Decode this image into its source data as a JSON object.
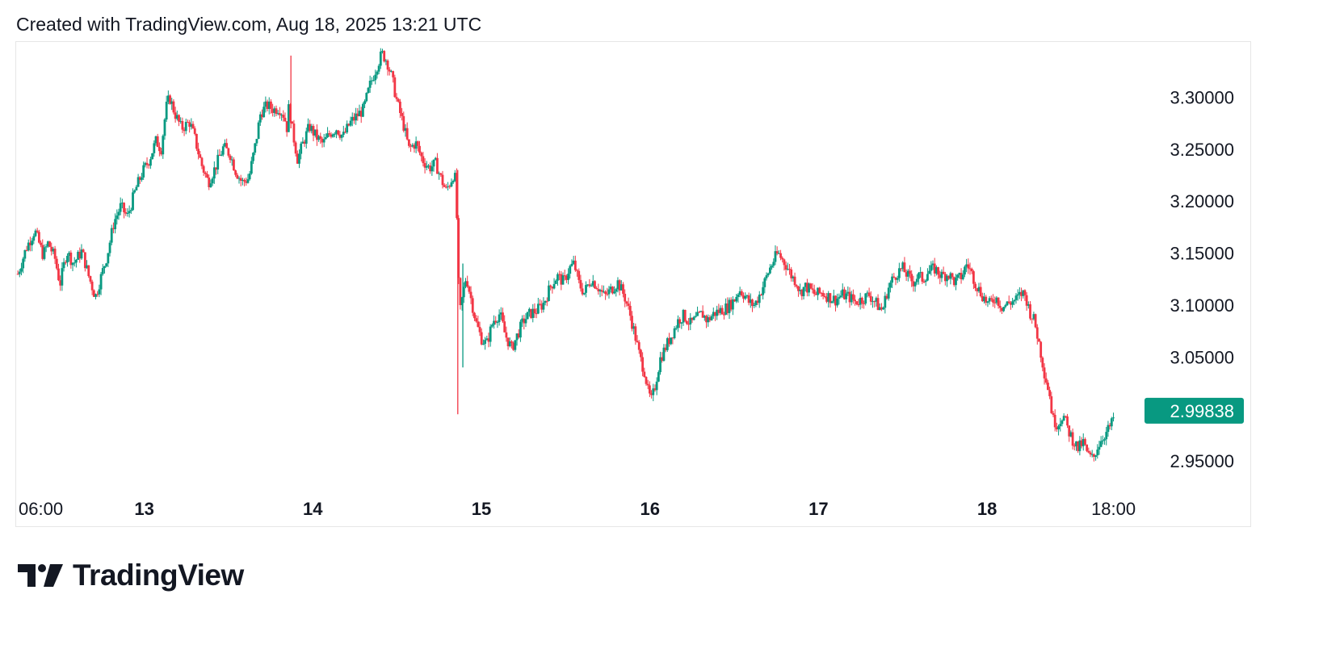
{
  "header": {
    "text": "Created with TradingView.com, Aug 18, 2025 13:21 UTC"
  },
  "footer": {
    "brand": "TradingView"
  },
  "colors": {
    "up": "#089981",
    "down": "#f23645",
    "text": "#131722",
    "border": "#e6e6e6",
    "last_price_bg": "#089981"
  },
  "chart_data": {
    "type": "candlestick",
    "y_ticks": [
      "3.30000",
      "3.25000",
      "3.20000",
      "3.15000",
      "3.10000",
      "3.05000",
      "2.95000"
    ],
    "ylim": [
      2.93,
      3.35
    ],
    "x_ticks": [
      {
        "label": "06:00",
        "t": 0.0,
        "bold": false
      },
      {
        "label": "13",
        "t": 0.75,
        "bold": true
      },
      {
        "label": "14",
        "t": 1.75,
        "bold": true
      },
      {
        "label": "15",
        "t": 2.75,
        "bold": true
      },
      {
        "label": "16",
        "t": 3.75,
        "bold": true
      },
      {
        "label": "17",
        "t": 4.75,
        "bold": true
      },
      {
        "label": "18",
        "t": 5.75,
        "bold": true
      },
      {
        "label": "18:00",
        "t": 6.5,
        "bold": false
      }
    ],
    "xlim": [
      -0.01,
      6.66
    ],
    "last_price": {
      "value": 2.99838,
      "label": "2.99838"
    },
    "path": [
      [
        0.0,
        3.13
      ],
      [
        0.05,
        3.155
      ],
      [
        0.1,
        3.172
      ],
      [
        0.15,
        3.148
      ],
      [
        0.18,
        3.16
      ],
      [
        0.22,
        3.145
      ],
      [
        0.25,
        3.12
      ],
      [
        0.29,
        3.152
      ],
      [
        0.33,
        3.14
      ],
      [
        0.38,
        3.152
      ],
      [
        0.42,
        3.128
      ],
      [
        0.46,
        3.108
      ],
      [
        0.49,
        3.125
      ],
      [
        0.53,
        3.148
      ],
      [
        0.57,
        3.18
      ],
      [
        0.61,
        3.195
      ],
      [
        0.65,
        3.185
      ],
      [
        0.7,
        3.212
      ],
      [
        0.74,
        3.228
      ],
      [
        0.78,
        3.24
      ],
      [
        0.82,
        3.258
      ],
      [
        0.85,
        3.25
      ],
      [
        0.88,
        3.29
      ],
      [
        0.9,
        3.3
      ],
      [
        0.93,
        3.285
      ],
      [
        0.97,
        3.27
      ],
      [
        1.02,
        3.276
      ],
      [
        1.05,
        3.26
      ],
      [
        1.09,
        3.235
      ],
      [
        1.13,
        3.218
      ],
      [
        1.17,
        3.232
      ],
      [
        1.22,
        3.252
      ],
      [
        1.26,
        3.245
      ],
      [
        1.29,
        3.23
      ],
      [
        1.33,
        3.218
      ],
      [
        1.37,
        3.222
      ],
      [
        1.41,
        3.255
      ],
      [
        1.44,
        3.285
      ],
      [
        1.48,
        3.292
      ],
      [
        1.52,
        3.288
      ],
      [
        1.55,
        3.29
      ],
      [
        1.58,
        3.282
      ],
      [
        1.6,
        3.268
      ],
      [
        1.61,
        3.3
      ],
      [
        1.62,
        3.275
      ],
      [
        1.64,
        3.258
      ],
      [
        1.66,
        3.24
      ],
      [
        1.69,
        3.255
      ],
      [
        1.73,
        3.272
      ],
      [
        1.77,
        3.262
      ],
      [
        1.81,
        3.255
      ],
      [
        1.85,
        3.265
      ],
      [
        1.89,
        3.27
      ],
      [
        1.93,
        3.262
      ],
      [
        1.97,
        3.275
      ],
      [
        2.01,
        3.282
      ],
      [
        2.05,
        3.288
      ],
      [
        2.09,
        3.312
      ],
      [
        2.13,
        3.33
      ],
      [
        2.16,
        3.342
      ],
      [
        2.19,
        3.335
      ],
      [
        2.22,
        3.318
      ],
      [
        2.25,
        3.295
      ],
      [
        2.29,
        3.272
      ],
      [
        2.32,
        3.25
      ],
      [
        2.36,
        3.256
      ],
      [
        2.4,
        3.24
      ],
      [
        2.44,
        3.232
      ],
      [
        2.48,
        3.236
      ],
      [
        2.51,
        3.222
      ],
      [
        2.54,
        3.21
      ],
      [
        2.57,
        3.22
      ],
      [
        2.59,
        3.228
      ],
      [
        2.6,
        3.21
      ],
      [
        2.61,
        3.145
      ],
      [
        2.62,
        3.09
      ],
      [
        2.64,
        3.11
      ],
      [
        2.66,
        3.128
      ],
      [
        2.69,
        3.105
      ],
      [
        2.72,
        3.082
      ],
      [
        2.75,
        3.068
      ],
      [
        2.78,
        3.062
      ],
      [
        2.82,
        3.085
      ],
      [
        2.86,
        3.092
      ],
      [
        2.89,
        3.072
      ],
      [
        2.93,
        3.058
      ],
      [
        2.96,
        3.07
      ],
      [
        3.0,
        3.085
      ],
      [
        3.04,
        3.092
      ],
      [
        3.08,
        3.095
      ],
      [
        3.12,
        3.102
      ],
      [
        3.16,
        3.118
      ],
      [
        3.2,
        3.128
      ],
      [
        3.24,
        3.122
      ],
      [
        3.27,
        3.135
      ],
      [
        3.3,
        3.14
      ],
      [
        3.33,
        3.12
      ],
      [
        3.36,
        3.112
      ],
      [
        3.4,
        3.125
      ],
      [
        3.44,
        3.118
      ],
      [
        3.48,
        3.108
      ],
      [
        3.52,
        3.115
      ],
      [
        3.56,
        3.122
      ],
      [
        3.6,
        3.108
      ],
      [
        3.63,
        3.092
      ],
      [
        3.66,
        3.072
      ],
      [
        3.69,
        3.05
      ],
      [
        3.72,
        3.035
      ],
      [
        3.74,
        3.015
      ],
      [
        3.76,
        3.008
      ],
      [
        3.78,
        3.022
      ],
      [
        3.81,
        3.048
      ],
      [
        3.85,
        3.062
      ],
      [
        3.88,
        3.072
      ],
      [
        3.92,
        3.086
      ],
      [
        3.95,
        3.09
      ],
      [
        3.99,
        3.082
      ],
      [
        4.02,
        3.086
      ],
      [
        4.06,
        3.092
      ],
      [
        4.09,
        3.085
      ],
      [
        4.13,
        3.092
      ],
      [
        4.17,
        3.095
      ],
      [
        4.21,
        3.098
      ],
      [
        4.25,
        3.105
      ],
      [
        4.28,
        3.115
      ],
      [
        4.31,
        3.11
      ],
      [
        4.34,
        3.102
      ],
      [
        4.37,
        3.1
      ],
      [
        4.4,
        3.11
      ],
      [
        4.43,
        3.122
      ],
      [
        4.46,
        3.135
      ],
      [
        4.49,
        3.145
      ],
      [
        4.51,
        3.15
      ],
      [
        4.53,
        3.145
      ],
      [
        4.56,
        3.138
      ],
      [
        4.59,
        3.128
      ],
      [
        4.62,
        3.122
      ],
      [
        4.64,
        3.112
      ],
      [
        4.67,
        3.118
      ],
      [
        4.7,
        3.115
      ],
      [
        4.73,
        3.11
      ],
      [
        4.77,
        3.112
      ],
      [
        4.81,
        3.108
      ],
      [
        4.85,
        3.105
      ],
      [
        4.89,
        3.11
      ],
      [
        4.93,
        3.108
      ],
      [
        4.97,
        3.103
      ],
      [
        5.01,
        3.106
      ],
      [
        5.05,
        3.11
      ],
      [
        5.09,
        3.102
      ],
      [
        5.11,
        3.098
      ],
      [
        5.13,
        3.095
      ],
      [
        5.16,
        3.115
      ],
      [
        5.19,
        3.125
      ],
      [
        5.22,
        3.132
      ],
      [
        5.25,
        3.135
      ],
      [
        5.28,
        3.128
      ],
      [
        5.31,
        3.122
      ],
      [
        5.34,
        3.128
      ],
      [
        5.37,
        3.125
      ],
      [
        5.4,
        3.132
      ],
      [
        5.44,
        3.135
      ],
      [
        5.48,
        3.128
      ],
      [
        5.52,
        3.13
      ],
      [
        5.56,
        3.122
      ],
      [
        5.6,
        3.128
      ],
      [
        5.63,
        3.14
      ],
      [
        5.66,
        3.13
      ],
      [
        5.69,
        3.118
      ],
      [
        5.72,
        3.11
      ],
      [
        5.76,
        3.1
      ],
      [
        5.8,
        3.108
      ],
      [
        5.84,
        3.098
      ],
      [
        5.88,
        3.102
      ],
      [
        5.92,
        3.105
      ],
      [
        5.96,
        3.112
      ],
      [
        5.98,
        3.108
      ],
      [
        6.0,
        3.095
      ],
      [
        6.03,
        3.085
      ],
      [
        6.06,
        3.062
      ],
      [
        6.09,
        3.035
      ],
      [
        6.12,
        3.015
      ],
      [
        6.14,
        2.99
      ],
      [
        6.17,
        2.985
      ],
      [
        6.2,
        2.995
      ],
      [
        6.23,
        2.98
      ],
      [
        6.26,
        2.97
      ],
      [
        6.29,
        2.962
      ],
      [
        6.32,
        2.968
      ],
      [
        6.35,
        2.955
      ],
      [
        6.38,
        2.952
      ],
      [
        6.4,
        2.962
      ],
      [
        6.43,
        2.972
      ],
      [
        6.46,
        2.978
      ],
      [
        6.49,
        2.986
      ],
      [
        6.51,
        2.998
      ]
    ]
  }
}
